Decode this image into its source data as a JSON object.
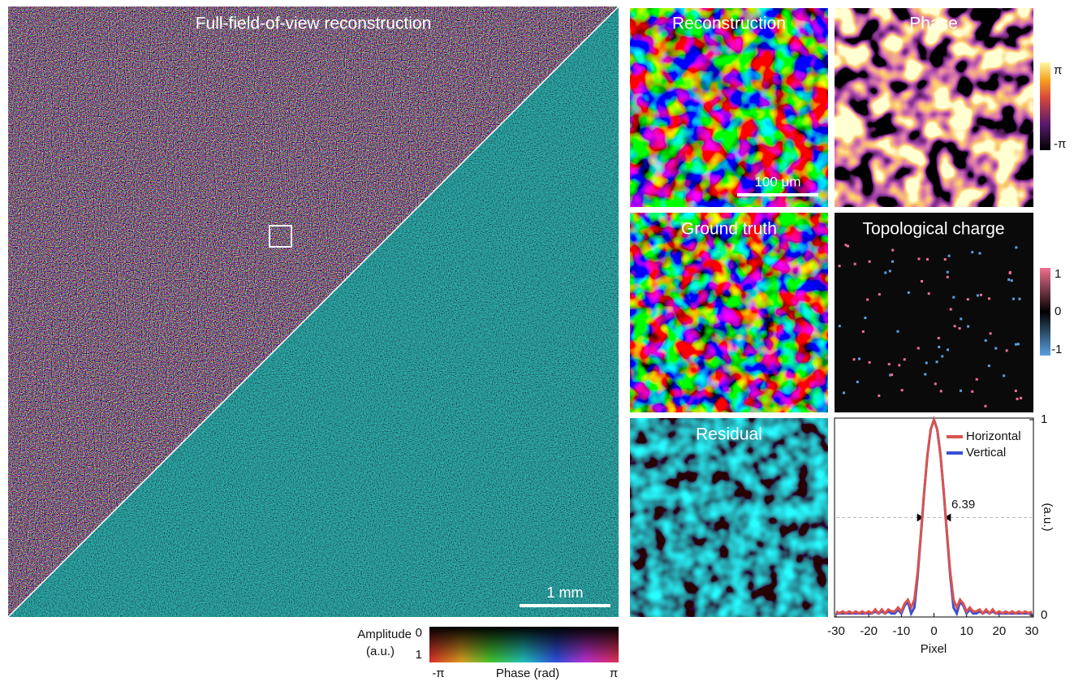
{
  "panels": {
    "full": {
      "title": "Full-field-of-view reconstruction",
      "scale_bar": "1 mm"
    },
    "reconstruction": {
      "title": "Reconstruction",
      "scale_bar": "100 μm"
    },
    "phase": {
      "title": "Phase",
      "colorbar": [
        "π",
        "-π"
      ]
    },
    "ground_truth": {
      "title": "Ground truth"
    },
    "topological_charge": {
      "title": "Topological charge",
      "colorbar": [
        "1",
        "0",
        "-1"
      ]
    },
    "residual": {
      "title": "Residual"
    }
  },
  "colorbar": {
    "amplitude_label": [
      "Amplitude",
      "(a.u.)"
    ],
    "amplitude_ticks": [
      "0",
      "1"
    ],
    "phase_ticks": [
      "-π",
      "π"
    ],
    "phase_label": "Phase (rad)"
  },
  "chart_data": {
    "type": "line",
    "xlabel": "Pixel",
    "ylabel": "(a.u.)",
    "annotation": "6.39",
    "reference_line": 0.5,
    "x": [
      -30,
      -29,
      -28,
      -27,
      -26,
      -25,
      -24,
      -23,
      -22,
      -21,
      -20,
      -19,
      -18,
      -17,
      -16,
      -15,
      -14,
      -13,
      -12,
      -11,
      -10,
      -9,
      -8,
      -7,
      -6,
      -5,
      -4,
      -3,
      -2,
      -1,
      0,
      1,
      2,
      3,
      4,
      5,
      6,
      7,
      8,
      9,
      10,
      11,
      12,
      13,
      14,
      15,
      16,
      17,
      18,
      19,
      20,
      21,
      22,
      23,
      24,
      25,
      26,
      27,
      28,
      29,
      30
    ],
    "series": [
      {
        "name": "Horizontal",
        "color": "#d9534f",
        "values": [
          0.02,
          0.01,
          0.02,
          0.01,
          0.02,
          0.01,
          0.02,
          0.01,
          0.02,
          0.01,
          0.02,
          0.01,
          0.03,
          0.01,
          0.03,
          0.01,
          0.03,
          0.02,
          0.02,
          0.04,
          0.02,
          0.06,
          0.08,
          0.04,
          0.08,
          0.22,
          0.42,
          0.63,
          0.82,
          0.95,
          1.0,
          0.95,
          0.82,
          0.63,
          0.42,
          0.22,
          0.08,
          0.04,
          0.08,
          0.06,
          0.02,
          0.04,
          0.02,
          0.02,
          0.03,
          0.01,
          0.03,
          0.01,
          0.03,
          0.01,
          0.02,
          0.01,
          0.02,
          0.01,
          0.02,
          0.01,
          0.02,
          0.01,
          0.02,
          0.01,
          0.02
        ]
      },
      {
        "name": "Vertical",
        "color": "#3a4fd6",
        "values": [
          0.01,
          0.01,
          0.01,
          0.01,
          0.01,
          0.01,
          0.01,
          0.01,
          0.01,
          0.01,
          0.01,
          0.01,
          0.02,
          0.01,
          0.02,
          0.01,
          0.02,
          0.01,
          0.01,
          0.03,
          0.01,
          0.05,
          0.07,
          0.01,
          0.04,
          0.2,
          0.41,
          0.63,
          0.82,
          0.95,
          1.0,
          0.95,
          0.82,
          0.63,
          0.41,
          0.2,
          0.04,
          0.01,
          0.07,
          0.05,
          0.01,
          0.03,
          0.01,
          0.01,
          0.02,
          0.01,
          0.02,
          0.01,
          0.02,
          0.01,
          0.01,
          0.01,
          0.01,
          0.01,
          0.01,
          0.01,
          0.01,
          0.01,
          0.01,
          0.01,
          0.01
        ]
      }
    ],
    "xlim": [
      -30,
      30
    ],
    "xticks": [
      -30,
      -20,
      -10,
      0,
      10,
      20,
      30
    ],
    "ylim": [
      0,
      1
    ],
    "yticks": [
      0,
      1
    ]
  }
}
